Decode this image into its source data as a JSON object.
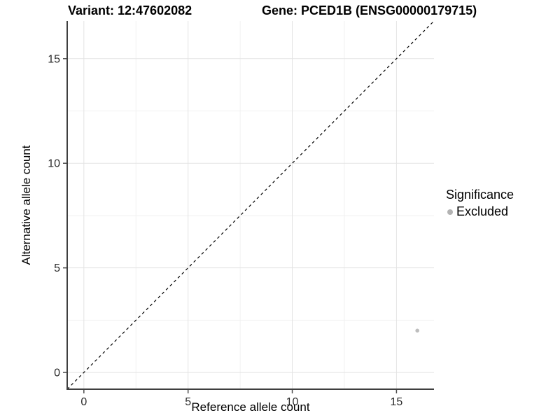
{
  "chart_data": {
    "type": "scatter",
    "title_variant": "Variant: 12:47602082",
    "title_gene": "Gene: PCED1B (ENSG00000179715)",
    "xlabel": "Reference allele count",
    "ylabel": "Alternative allele count",
    "xlim": [
      -0.8,
      16.8
    ],
    "ylim": [
      -0.8,
      16.8
    ],
    "xticks": [
      0,
      5,
      10,
      15
    ],
    "yticks": [
      0,
      5,
      10,
      15
    ],
    "minor_xticks": [
      2.5,
      7.5,
      12.5
    ],
    "minor_yticks": [
      2.5,
      7.5,
      12.5
    ],
    "grid": "major+minor",
    "identity_line": {
      "style": "dashed",
      "from": [
        -0.8,
        -0.8
      ],
      "to": [
        16.8,
        16.8
      ],
      "color": "#000000"
    },
    "series": [
      {
        "name": "Excluded",
        "color": "#bdbdbd",
        "point_radius": 2.8,
        "points": [
          [
            16,
            2
          ]
        ]
      }
    ],
    "legend": {
      "position": "right",
      "title": "Significance",
      "items": [
        {
          "label": "Excluded",
          "color": "#b3b3b3"
        }
      ]
    },
    "colors": {
      "background": "#ffffff",
      "grid_major": "#e3e3e3",
      "grid_minor": "#f1f1f1",
      "axis_line": "#3f3f3f",
      "tick_mark": "#4d4d4d",
      "tick_label": "#2b2b2b"
    }
  }
}
